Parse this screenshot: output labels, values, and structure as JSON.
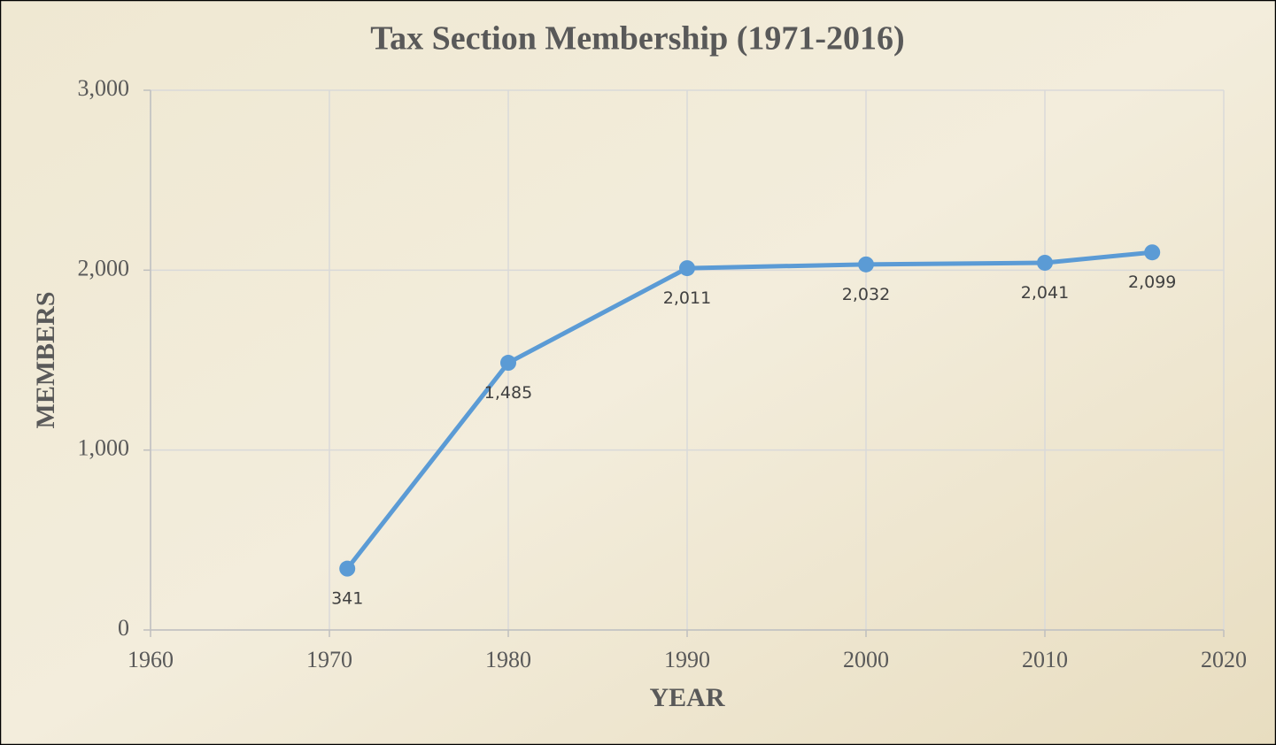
{
  "chart_data": {
    "type": "line",
    "title": "Tax Section Membership (1971-2016)",
    "x_label": "YEAR",
    "y_label": "MEMBERS",
    "x": [
      1971,
      1980,
      1990,
      2000,
      2010,
      2016
    ],
    "values": [
      341,
      1485,
      2011,
      2032,
      2041,
      2099
    ],
    "value_labels": [
      "341",
      "1,485",
      "2,011",
      "2,032",
      "2,041",
      "2,099"
    ],
    "color": "#5b9bd5",
    "xlim": [
      1960,
      2020
    ],
    "xticks": [
      1960,
      1970,
      1980,
      1990,
      2000,
      2010,
      2020
    ],
    "ylim": [
      0,
      3000
    ],
    "yticks": [
      0,
      {
        "value": 1000,
        "label": "1,000"
      },
      {
        "value": 2000,
        "label": "2,000"
      },
      {
        "value": 3000,
        "label": "3,000"
      }
    ],
    "grid": true
  }
}
